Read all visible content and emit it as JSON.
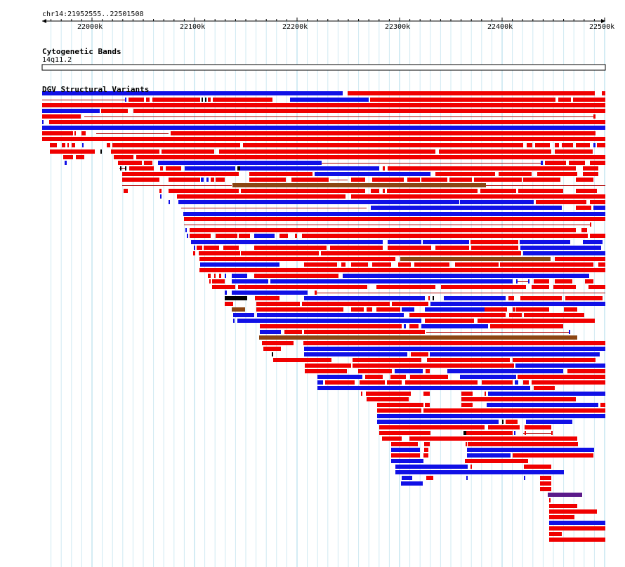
{
  "browser": {
    "location": "chr14:21952555..22501508",
    "scale": {
      "start": 21952555,
      "end": 22501508,
      "tick_labels": [
        "22000k",
        "22100k",
        "22200k",
        "22300k",
        "22400k",
        "22500k"
      ],
      "tick_values": [
        22000000,
        22100000,
        22200000,
        22300000,
        22400000,
        22500000
      ]
    },
    "colors": {
      "background": "#ffffff",
      "grid_major": "#a9d8e8",
      "grid_minor": "#cfe9f2",
      "gain": "#f00000",
      "loss": "#1010e6",
      "gain_loss": "#8b4513",
      "inversion": "#5a1a8a",
      "other": "#000000",
      "connector": "#1010e6"
    }
  },
  "tracks": {
    "cytoband": {
      "title": "Cytogenetic Bands",
      "band_label": "14q11.2"
    },
    "dgv": {
      "title": "DGV Structural Variants"
    }
  }
}
